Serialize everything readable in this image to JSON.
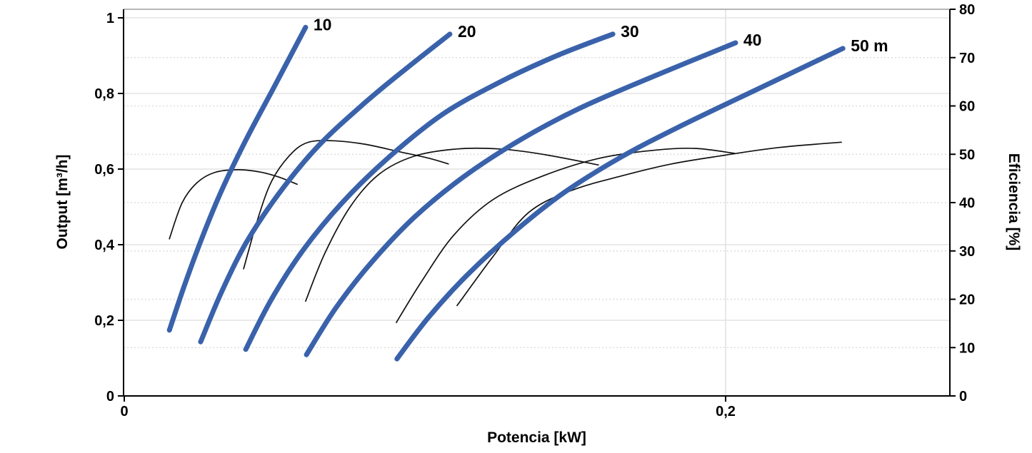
{
  "chart_data": {
    "type": "line",
    "title": "",
    "xlabel": "Potencia [kW]",
    "ylabel_left": "Output [m³/h]",
    "ylabel_right": "Eficiencia [%]",
    "xlim": [
      0,
      0.275
    ],
    "ylim_left": [
      0,
      1.02
    ],
    "ylim_right": [
      0,
      80
    ],
    "grid": "solid horizontal lines at left-axis majors (0,2 steps), dotted horizontal lines at right-axis majors (10% steps), vertical line at 0,2 kW",
    "legend_position": "labels at curve ends",
    "x_ticks": [
      {
        "value": 0,
        "label": "0"
      },
      {
        "value": 0.2,
        "label": "0,2"
      }
    ],
    "y_left_ticks": [
      {
        "value": 0,
        "label": "0"
      },
      {
        "value": 0.2,
        "label": "0,2"
      },
      {
        "value": 0.4,
        "label": "0,4"
      },
      {
        "value": 0.6,
        "label": "0,6"
      },
      {
        "value": 0.8,
        "label": "0,8"
      },
      {
        "value": 1,
        "label": "1"
      }
    ],
    "y_right_ticks": [
      {
        "value": 0,
        "label": "0"
      },
      {
        "value": 10,
        "label": "10"
      },
      {
        "value": 20,
        "label": "20"
      },
      {
        "value": 30,
        "label": "30"
      },
      {
        "value": 40,
        "label": "40"
      },
      {
        "value": 50,
        "label": "50"
      },
      {
        "value": 60,
        "label": "60"
      },
      {
        "value": 70,
        "label": "70"
      },
      {
        "value": 80,
        "label": "80"
      }
    ],
    "head_curves": [
      {
        "label": "10",
        "unit": "m",
        "axis": "left",
        "points": [
          [
            0.015,
            0.174
          ],
          [
            0.02,
            0.292
          ],
          [
            0.0257,
            0.415
          ],
          [
            0.0323,
            0.542
          ],
          [
            0.0406,
            0.679
          ],
          [
            0.0501,
            0.821
          ],
          [
            0.0603,
            0.975
          ]
        ]
      },
      {
        "label": "20",
        "unit": "m",
        "axis": "left",
        "points": [
          [
            0.0254,
            0.143
          ],
          [
            0.0323,
            0.274
          ],
          [
            0.0406,
            0.406
          ],
          [
            0.0513,
            0.534
          ],
          [
            0.0644,
            0.66
          ],
          [
            0.0798,
            0.774
          ],
          [
            0.0941,
            0.868
          ],
          [
            0.1083,
            0.957
          ]
        ]
      },
      {
        "label": "30",
        "unit": "m",
        "axis": "left",
        "points": [
          [
            0.0404,
            0.123
          ],
          [
            0.0489,
            0.255
          ],
          [
            0.0596,
            0.387
          ],
          [
            0.0727,
            0.513
          ],
          [
            0.0881,
            0.632
          ],
          [
            0.1059,
            0.745
          ],
          [
            0.1249,
            0.83
          ],
          [
            0.1439,
            0.9
          ],
          [
            0.1625,
            0.957
          ]
        ]
      },
      {
        "label": "40",
        "unit": "m",
        "axis": "left",
        "points": [
          [
            0.0606,
            0.109
          ],
          [
            0.0703,
            0.232
          ],
          [
            0.0822,
            0.353
          ],
          [
            0.0964,
            0.472
          ],
          [
            0.1131,
            0.581
          ],
          [
            0.1321,
            0.679
          ],
          [
            0.1523,
            0.764
          ],
          [
            0.1772,
            0.849
          ],
          [
            0.2033,
            0.934
          ]
        ]
      },
      {
        "label": "50 m",
        "unit": "m",
        "axis": "left",
        "points": [
          [
            0.0907,
            0.098
          ],
          [
            0.1012,
            0.208
          ],
          [
            0.1142,
            0.321
          ],
          [
            0.1297,
            0.434
          ],
          [
            0.1463,
            0.538
          ],
          [
            0.1653,
            0.632
          ],
          [
            0.1843,
            0.711
          ],
          [
            0.2105,
            0.811
          ],
          [
            0.239,
            0.919
          ]
        ]
      }
    ],
    "efficiency_curves": [
      {
        "for_head": "10",
        "axis": "right",
        "points": [
          [
            0.015,
            32.5
          ],
          [
            0.0192,
            39.9
          ],
          [
            0.024,
            44.0
          ],
          [
            0.0299,
            46.2
          ],
          [
            0.0378,
            46.8
          ],
          [
            0.0454,
            46.3
          ],
          [
            0.0513,
            45.3
          ],
          [
            0.0575,
            43.8
          ]
        ]
      },
      {
        "for_head": "20",
        "axis": "right",
        "points": [
          [
            0.0397,
            26.3
          ],
          [
            0.0442,
            36.2
          ],
          [
            0.0489,
            44.3
          ],
          [
            0.0549,
            49.7
          ],
          [
            0.0608,
            52.4
          ],
          [
            0.0691,
            52.8
          ],
          [
            0.0798,
            52.1
          ],
          [
            0.0917,
            50.5
          ],
          [
            0.1012,
            49.2
          ],
          [
            0.1078,
            48.0
          ]
        ]
      },
      {
        "for_head": "30",
        "axis": "right",
        "points": [
          [
            0.0603,
            19.6
          ],
          [
            0.0667,
            29.5
          ],
          [
            0.0751,
            39.1
          ],
          [
            0.0846,
            45.8
          ],
          [
            0.0964,
            49.6
          ],
          [
            0.1107,
            51.1
          ],
          [
            0.1249,
            51.1
          ],
          [
            0.1392,
            50.0
          ],
          [
            0.1577,
            47.8
          ]
        ]
      },
      {
        "for_head": "40",
        "axis": "right",
        "points": [
          [
            0.0905,
            15.2
          ],
          [
            0.0988,
            23.6
          ],
          [
            0.1095,
            33.2
          ],
          [
            0.1226,
            40.6
          ],
          [
            0.1392,
            45.5
          ],
          [
            0.1582,
            49.2
          ],
          [
            0.1772,
            50.9
          ],
          [
            0.1903,
            51.2
          ],
          [
            0.2029,
            50.2
          ]
        ]
      },
      {
        "for_head": "50",
        "axis": "right",
        "points": [
          [
            0.1107,
            18.7
          ],
          [
            0.1226,
            28.8
          ],
          [
            0.1344,
            37.9
          ],
          [
            0.1487,
            42.5
          ],
          [
            0.1653,
            45.5
          ],
          [
            0.182,
            48.0
          ],
          [
            0.1986,
            49.7
          ],
          [
            0.2176,
            51.4
          ],
          [
            0.2385,
            52.5
          ]
        ]
      }
    ],
    "colors": {
      "head_curve": "#3a62ab",
      "efficiency_curve": "#111111",
      "grid_solid": "#e3e3e3",
      "grid_dotted": "#dedede",
      "axis": "#000000",
      "top_border": "#9e9e9e",
      "background": "#ffffff"
    }
  }
}
